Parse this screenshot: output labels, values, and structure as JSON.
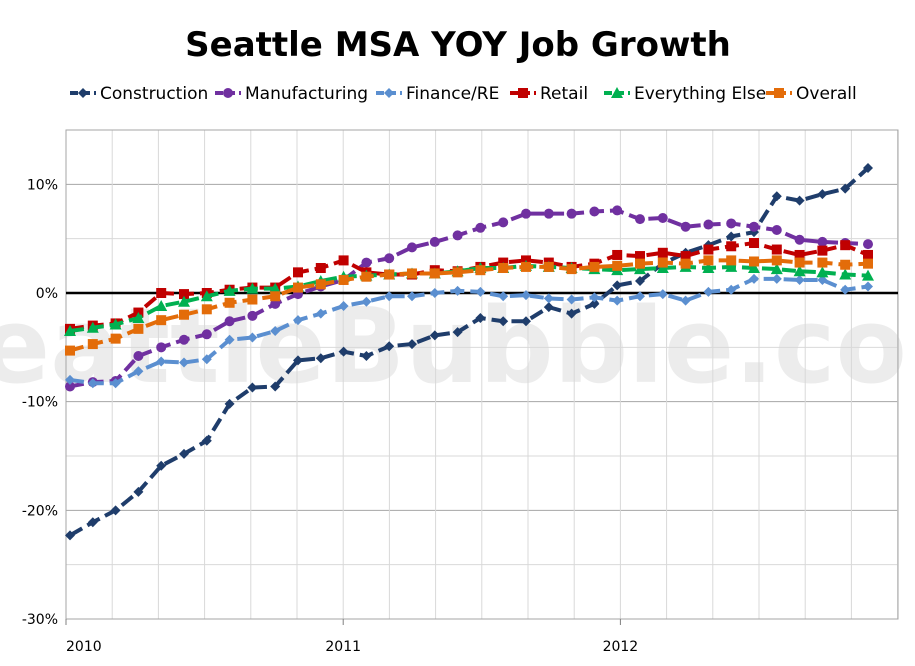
{
  "watermark": "SeattleBubble.com",
  "chart_data": {
    "type": "line",
    "title": "Seattle MSA YOY Job Growth",
    "xlabel": "",
    "ylabel": "",
    "legend_position": "top",
    "grid": true,
    "ylim": [
      -30,
      15
    ],
    "y_ticks": [
      10,
      0,
      -10,
      -20,
      -30
    ],
    "y_tick_labels": [
      "10%",
      "0%",
      "-10%",
      "-20%",
      "-30%"
    ],
    "x_tick_labels": [
      {
        "index": 0,
        "label": "2010"
      },
      {
        "index": 12,
        "label": "2011"
      },
      {
        "index": 24,
        "label": "2012"
      }
    ],
    "n_points": 36,
    "series": [
      {
        "name": "Construction",
        "color": "#1f3d6b",
        "marker": "diamond",
        "values": [
          -22.3,
          -21.1,
          -20.0,
          -18.3,
          -15.9,
          -14.8,
          -13.6,
          -10.2,
          -8.7,
          -8.6,
          -6.2,
          -6.0,
          -5.4,
          -5.8,
          -4.9,
          -4.7,
          -3.9,
          -3.6,
          -2.3,
          -2.6,
          -2.6,
          -1.3,
          -1.9,
          -1.0,
          0.7,
          1.1,
          2.7,
          3.7,
          4.4,
          5.2,
          5.6,
          8.9,
          8.5,
          9.1,
          9.6,
          11.5
        ]
      },
      {
        "name": "Manufacturing",
        "color": "#7030a0",
        "marker": "circle",
        "values": [
          -8.6,
          -8.2,
          -8.1,
          -5.8,
          -5.0,
          -4.3,
          -3.8,
          -2.6,
          -2.1,
          -1.0,
          -0.1,
          0.6,
          1.2,
          2.8,
          3.2,
          4.2,
          4.7,
          5.3,
          6.0,
          6.5,
          7.3,
          7.3,
          7.3,
          7.5,
          7.6,
          6.8,
          6.9,
          6.1,
          6.3,
          6.4,
          6.1,
          5.8,
          4.9,
          4.7,
          4.6,
          4.5
        ]
      },
      {
        "name": "Finance/RE",
        "color": "#5b8fd0",
        "marker": "diamond",
        "values": [
          -8.0,
          -8.3,
          -8.3,
          -7.2,
          -6.3,
          -6.4,
          -6.1,
          -4.3,
          -4.1,
          -3.5,
          -2.5,
          -1.9,
          -1.2,
          -0.8,
          -0.3,
          -0.3,
          0.0,
          0.2,
          0.1,
          -0.3,
          -0.2,
          -0.5,
          -0.6,
          -0.4,
          -0.7,
          -0.3,
          -0.1,
          -0.7,
          0.1,
          0.3,
          1.3,
          1.3,
          1.2,
          1.2,
          0.3,
          0.6
        ]
      },
      {
        "name": "Retail",
        "color": "#c00000",
        "marker": "square",
        "values": [
          -3.3,
          -3.0,
          -2.8,
          -1.8,
          0.0,
          -0.1,
          0.0,
          0.3,
          0.5,
          0.5,
          1.9,
          2.3,
          3.0,
          1.9,
          1.7,
          1.7,
          2.1,
          2.0,
          2.4,
          2.8,
          3.0,
          2.8,
          2.4,
          2.7,
          3.5,
          3.4,
          3.7,
          3.4,
          4.0,
          4.3,
          4.6,
          4.0,
          3.5,
          3.9,
          4.4,
          3.5
        ]
      },
      {
        "name": "Everything Else",
        "color": "#00b050",
        "marker": "triangle",
        "values": [
          -3.5,
          -3.2,
          -2.9,
          -2.3,
          -1.2,
          -0.8,
          -0.3,
          0.2,
          0.4,
          0.4,
          0.6,
          1.1,
          1.5,
          1.6,
          1.7,
          1.8,
          1.8,
          2.0,
          2.3,
          2.3,
          2.5,
          2.4,
          2.3,
          2.2,
          2.1,
          2.2,
          2.3,
          2.4,
          2.3,
          2.4,
          2.3,
          2.2,
          2.0,
          1.9,
          1.7,
          1.6
        ]
      },
      {
        "name": "Overall",
        "color": "#e36c09",
        "marker": "square",
        "values": [
          -5.3,
          -4.7,
          -4.2,
          -3.3,
          -2.5,
          -2.0,
          -1.5,
          -0.9,
          -0.6,
          -0.3,
          0.5,
          0.8,
          1.2,
          1.5,
          1.7,
          1.8,
          1.8,
          1.9,
          2.1,
          2.3,
          2.4,
          2.4,
          2.2,
          2.4,
          2.5,
          2.7,
          2.8,
          2.7,
          3.0,
          3.0,
          2.9,
          3.0,
          2.8,
          2.8,
          2.6,
          2.7
        ]
      }
    ]
  }
}
